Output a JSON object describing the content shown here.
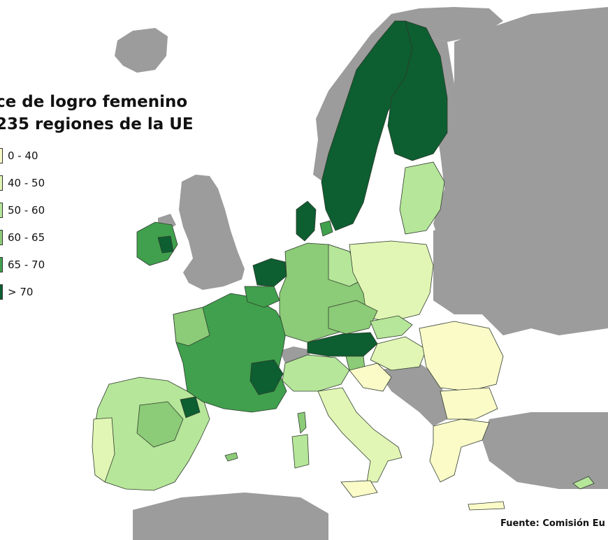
{
  "title": {
    "line1": "ce de logro femenino",
    "line2": "235 regiones de la UE"
  },
  "legend": [
    {
      "label": "0 - 40",
      "color": "#fbfbc8"
    },
    {
      "label": "40 - 50",
      "color": "#e1f6b4"
    },
    {
      "label": "50 - 60",
      "color": "#b6e699"
    },
    {
      "label": "60 - 65",
      "color": "#8ccb77"
    },
    {
      "label": "65 - 70",
      "color": "#40a04d"
    },
    {
      "label": "> 70",
      "color": "#0d5e30"
    }
  ],
  "map_colors": {
    "non_eu": "#9c9c9c",
    "sea": "#ffffff",
    "border": "#2f3b2f"
  },
  "source": "Fuente: Comisión Eu"
}
